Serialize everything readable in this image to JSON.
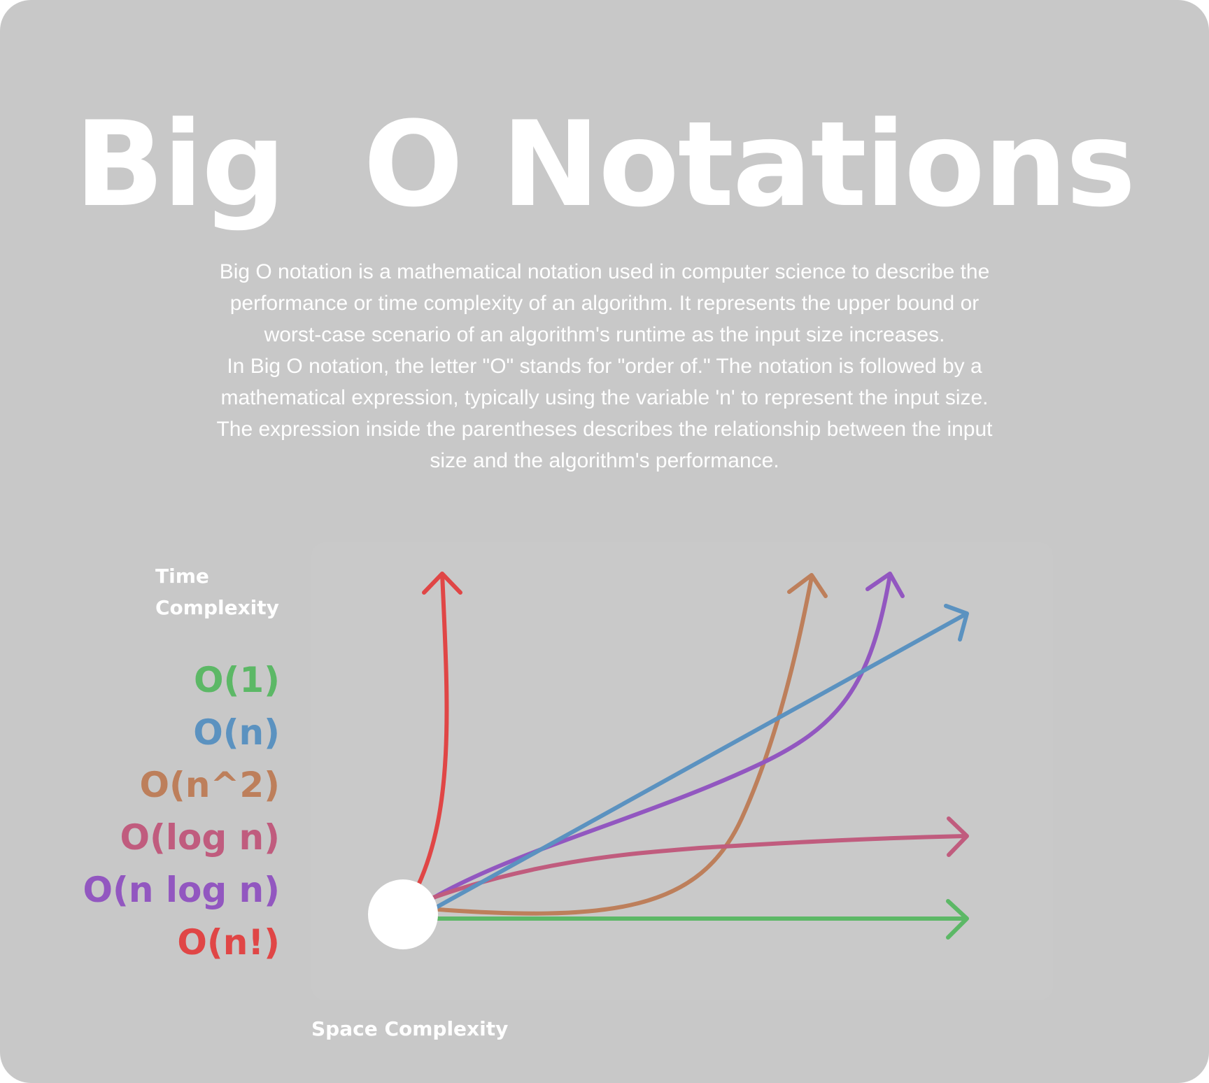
{
  "title": "Big  O Notations",
  "description": [
    "Big O notation is a mathematical notation used in computer science to describe the",
    "performance or time complexity of an algorithm. It represents the upper bound or",
    "worst-case scenario of an algorithm's runtime as the input size increases.",
    "In Big O notation, the letter \"O\" stands for \"order of.\" The notation is followed by a",
    "mathematical expression, typically using the variable 'n' to represent the input size.",
    "The expression inside the parentheses describes the relationship between the input",
    "size and the algorithm's performance."
  ],
  "axes": {
    "y_label_line1": "Time",
    "y_label_line2": "Complexity",
    "x_label": "Space Complexity"
  },
  "legend": [
    {
      "label": "O(1)",
      "color": "#5cb866"
    },
    {
      "label": "O(n)",
      "color": "#5b92c0"
    },
    {
      "label": "O(n^2)",
      "color": "#bd7f5b"
    },
    {
      "label": "O(log n)",
      "color": "#c05c7e"
    },
    {
      "label": "O(n log n)",
      "color": "#9257c0"
    },
    {
      "label": "O(n!)",
      "color": "#e04646"
    }
  ],
  "colors": {
    "background": "#c8c8c8",
    "text": "#ffffff",
    "origin": "#ffffff"
  }
}
